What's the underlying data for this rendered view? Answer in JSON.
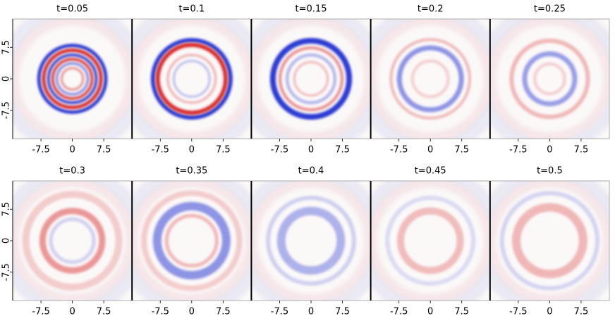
{
  "chart_data": [
    {
      "type": "heatmap",
      "title": "t=0.05",
      "xlim": [
        -14.25,
        14.25
      ],
      "ylim": [
        -14.25,
        14.25
      ],
      "xticks": [
        -7.5,
        0,
        7.5
      ],
      "yticks": [
        -7.5,
        0,
        7.5
      ]
    },
    {
      "type": "heatmap",
      "title": "t=0.1",
      "xlim": [
        -14.25,
        14.25
      ],
      "ylim": [
        -14.25,
        14.25
      ],
      "xticks": [
        -7.5,
        0,
        7.5
      ]
    },
    {
      "type": "heatmap",
      "title": "t=0.15",
      "xlim": [
        -14.25,
        14.25
      ],
      "ylim": [
        -14.25,
        14.25
      ],
      "xticks": [
        -7.5,
        0,
        7.5
      ]
    },
    {
      "type": "heatmap",
      "title": "t=0.2",
      "xlim": [
        -14.25,
        14.25
      ],
      "ylim": [
        -14.25,
        14.25
      ],
      "xticks": [
        -7.5,
        0,
        7.5
      ]
    },
    {
      "type": "heatmap",
      "title": "t=0.25",
      "xlim": [
        -14.25,
        14.25
      ],
      "ylim": [
        -14.25,
        14.25
      ],
      "xticks": [
        -7.5,
        0,
        7.5
      ]
    },
    {
      "type": "heatmap",
      "title": "t=0.3",
      "xlim": [
        -14.25,
        14.25
      ],
      "ylim": [
        -14.25,
        14.25
      ],
      "xticks": [
        -7.5,
        0,
        7.5
      ],
      "yticks": [
        -7.5,
        0,
        7.5
      ]
    },
    {
      "type": "heatmap",
      "title": "t=0.35",
      "xlim": [
        -14.25,
        14.25
      ],
      "ylim": [
        -14.25,
        14.25
      ],
      "xticks": [
        -7.5,
        0,
        7.5
      ]
    },
    {
      "type": "heatmap",
      "title": "t=0.4",
      "xlim": [
        -14.25,
        14.25
      ],
      "ylim": [
        -14.25,
        14.25
      ],
      "xticks": [
        -7.5,
        0,
        7.5
      ]
    },
    {
      "type": "heatmap",
      "title": "t=0.45",
      "xlim": [
        -14.25,
        14.25
      ],
      "ylim": [
        -14.25,
        14.25
      ],
      "xticks": [
        -7.5,
        0,
        7.5
      ]
    },
    {
      "type": "heatmap",
      "title": "t=0.5",
      "xlim": [
        -14.25,
        14.25
      ],
      "ylim": [
        -14.25,
        14.25
      ],
      "xticks": [
        -7.5,
        0,
        7.5
      ]
    }
  ]
}
